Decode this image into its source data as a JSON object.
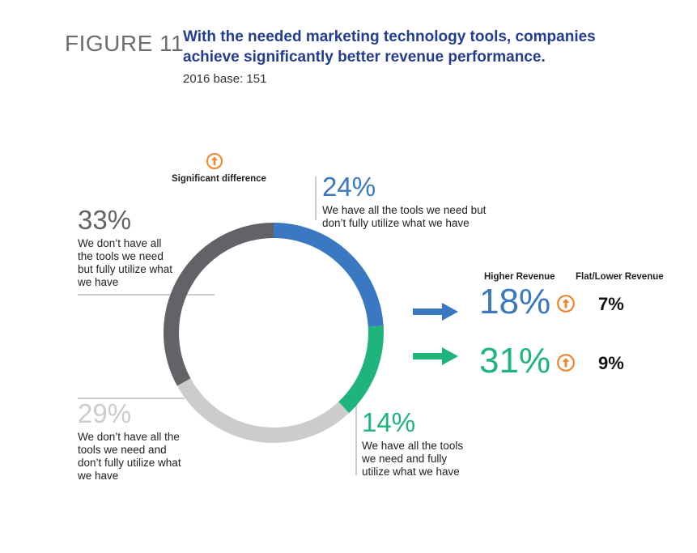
{
  "header": {
    "figure_label": "FIGURE 11",
    "title_line1": "With the needed marketing technology tools, companies",
    "title_line2": "achieve significantly better revenue performance.",
    "base": "2016 base: 151"
  },
  "legend": {
    "significant_label": "Significant difference",
    "icon": "up-arrow-circle-icon",
    "icon_color": "#f0862a"
  },
  "chart_data": {
    "type": "donut",
    "slices": [
      {
        "value": 24,
        "label": "24%",
        "description": [
          "We have all the tools we need but",
          "don’t fully utilize what we have"
        ],
        "color": "#3a78c1"
      },
      {
        "value": 14,
        "label": "14%",
        "description": [
          "We have all the tools",
          "we need and fully",
          "utilize what we have"
        ],
        "color": "#1fb47b"
      },
      {
        "value": 29,
        "label": "29%",
        "description": [
          "We don’t have all the",
          "tools we need and",
          "don’t fully utilize what",
          "we have"
        ],
        "color": "#cccccc"
      },
      {
        "value": 33,
        "label": "33%",
        "description": [
          "We don’t have all",
          "the tools we need",
          "but fully utilize what",
          "we have"
        ],
        "color": "#626366"
      }
    ],
    "revenue_table": {
      "headers": [
        "Higher Revenue",
        "Flat/Lower Revenue"
      ],
      "rows": [
        {
          "segment": "24%",
          "higher": "18%",
          "flat_lower": "7%",
          "significant": true,
          "color": "#3a78c1"
        },
        {
          "segment": "14%",
          "higher": "31%",
          "flat_lower": "9%",
          "significant": true,
          "color": "#1fb47b"
        }
      ]
    }
  }
}
